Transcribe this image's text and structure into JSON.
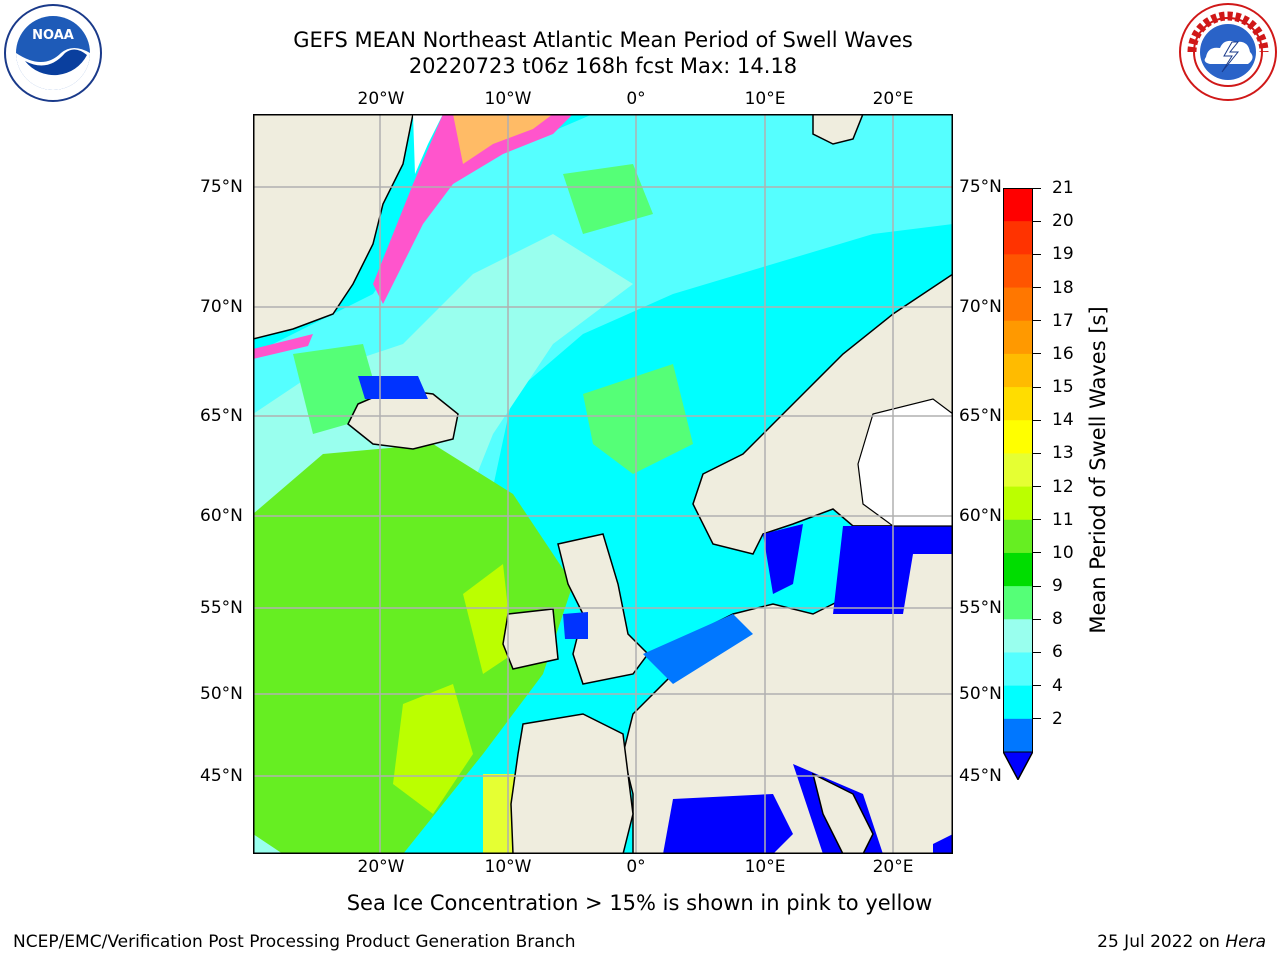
{
  "header": {
    "title_line1": "GEFS MEAN Northeast Atlantic Mean Period of Swell Waves",
    "title_line2": "20220723 t06z 168h fcst   Max: 14.18"
  },
  "logos": {
    "left": "noaa-logo",
    "right": "nws-logo"
  },
  "map": {
    "lon_labels": [
      "20°W",
      "10°W",
      "0°",
      "10°E",
      "20°E"
    ],
    "lat_labels": [
      "75°N",
      "70°N",
      "65°N",
      "60°N",
      "55°N",
      "50°N",
      "45°N"
    ]
  },
  "colorbar": {
    "label": "Mean Period of Swell Waves [s]",
    "ticks": [
      "21",
      "20",
      "19",
      "18",
      "17",
      "16",
      "15",
      "14",
      "13",
      "12",
      "11",
      "10",
      "9",
      "8",
      "6",
      "4",
      "2"
    ],
    "colors": [
      "#ff0000",
      "#ff3300",
      "#ff5500",
      "#ff7700",
      "#ff9900",
      "#ffbb00",
      "#ffdd00",
      "#ffff00",
      "#e5ff33",
      "#bbff00",
      "#66ee22",
      "#00dd00",
      "#55ff77",
      "#99ffee",
      "#55ffff",
      "#00ffff",
      "#0077ff"
    ],
    "under_color": "#0000ff"
  },
  "note": "Sea Ice Concentration > 15% is shown in pink to yellow",
  "footer": {
    "left": "NCEP/EMC/Verification Post Processing Product Generation Branch",
    "date": "25 Jul 2022 on ",
    "host": "Hera"
  }
}
